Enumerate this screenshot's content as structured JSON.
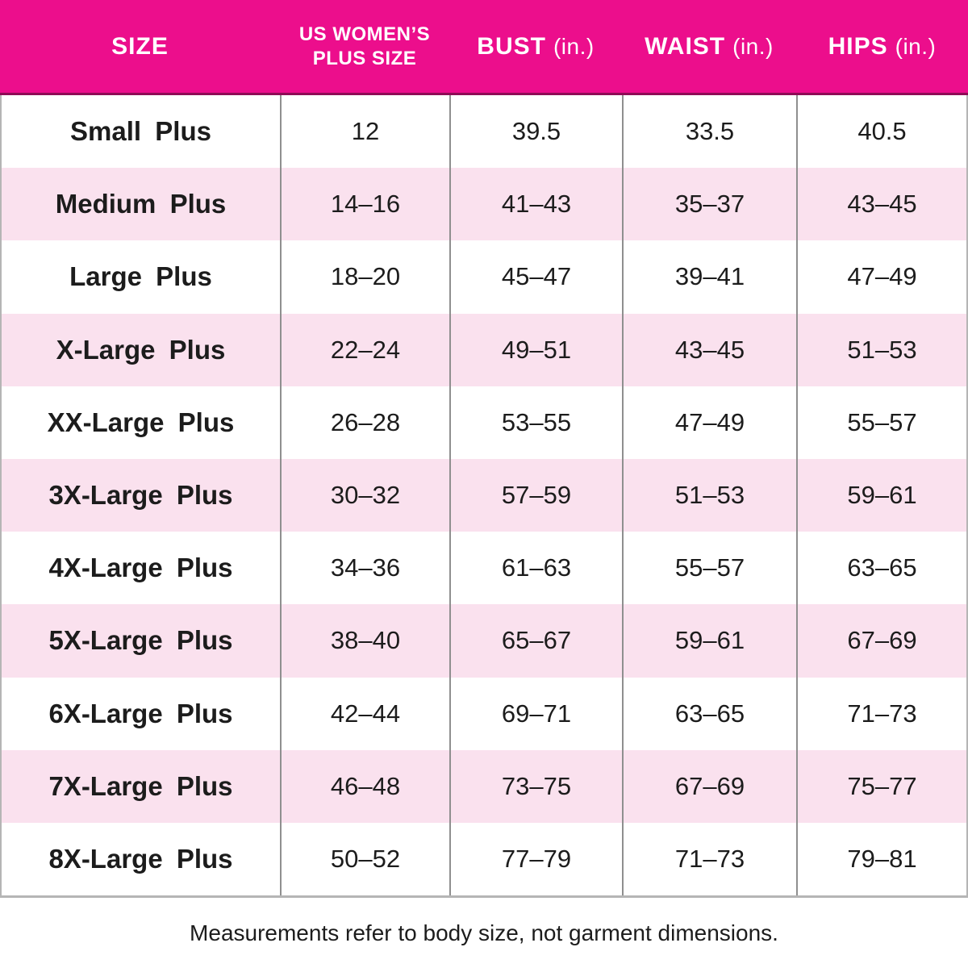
{
  "theme": {
    "header_bg": "#EC0E8C",
    "header_text": "#FFFFFF",
    "header_line": "#8E0B56",
    "row_bg": "#FFFFFF",
    "row_alt_bg": "#FAE1EE",
    "body_text": "#1C1C1C",
    "divider": "#8F8F8F",
    "outer_border": "#B5B5B5"
  },
  "header": {
    "size": "SIZE",
    "plus_line1": "US WOMEN’S",
    "plus_line2": "PLUS SIZE",
    "bust": "BUST",
    "waist": "WAIST",
    "hips": "HIPS",
    "unit": "(in.)"
  },
  "chart_data": {
    "type": "table",
    "title": "Plus size chart",
    "columns": [
      "SIZE",
      "US WOMEN’S PLUS SIZE",
      "BUST (in.)",
      "WAIST (in.)",
      "HIPS (in.)"
    ],
    "rows": [
      {
        "size": "Small Plus",
        "us_plus_size": "12",
        "bust": "39.5",
        "waist": "33.5",
        "hips": "40.5"
      },
      {
        "size": "Medium Plus",
        "us_plus_size": "14–16",
        "bust": "41–43",
        "waist": "35–37",
        "hips": "43–45"
      },
      {
        "size": "Large Plus",
        "us_plus_size": "18–20",
        "bust": "45–47",
        "waist": "39–41",
        "hips": "47–49"
      },
      {
        "size": "X-Large Plus",
        "us_plus_size": "22–24",
        "bust": "49–51",
        "waist": "43–45",
        "hips": "51–53"
      },
      {
        "size": "XX-Large Plus",
        "us_plus_size": "26–28",
        "bust": "53–55",
        "waist": "47–49",
        "hips": "55–57"
      },
      {
        "size": "3X-Large Plus",
        "us_plus_size": "30–32",
        "bust": "57–59",
        "waist": "51–53",
        "hips": "59–61"
      },
      {
        "size": "4X-Large Plus",
        "us_plus_size": "34–36",
        "bust": "61–63",
        "waist": "55–57",
        "hips": "63–65"
      },
      {
        "size": "5X-Large Plus",
        "us_plus_size": "38–40",
        "bust": "65–67",
        "waist": "59–61",
        "hips": "67–69"
      },
      {
        "size": "6X-Large Plus",
        "us_plus_size": "42–44",
        "bust": "69–71",
        "waist": "63–65",
        "hips": "71–73"
      },
      {
        "size": "7X-Large Plus",
        "us_plus_size": "46–48",
        "bust": "73–75",
        "waist": "67–69",
        "hips": "75–77"
      },
      {
        "size": "8X-Large Plus",
        "us_plus_size": "50–52",
        "bust": "77–79",
        "waist": "71–73",
        "hips": "79–81"
      }
    ],
    "footnote": "Measurements refer to body size, not garment dimensions."
  }
}
